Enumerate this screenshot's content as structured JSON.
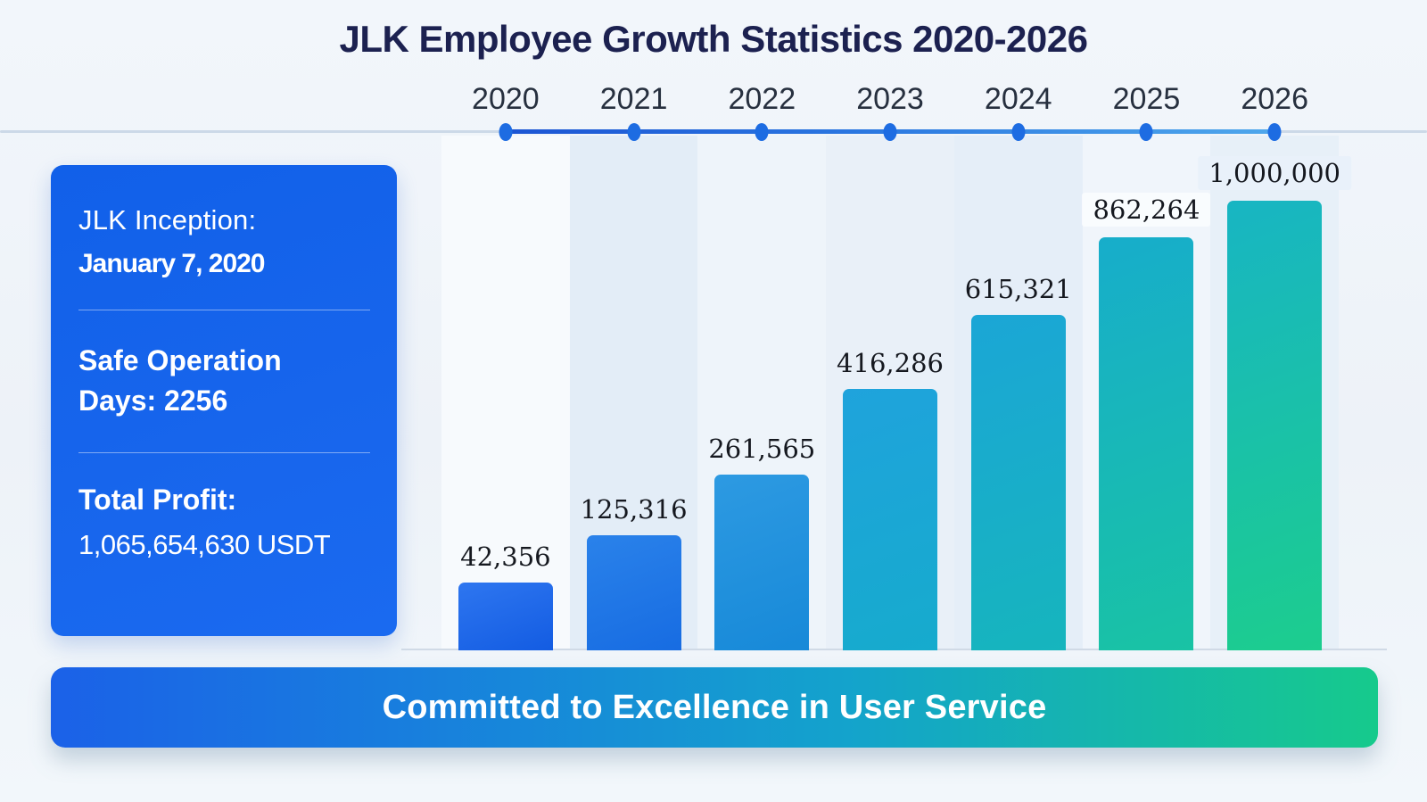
{
  "page": {
    "title": "JLK Employee Growth Statistics 2020-2026"
  },
  "chart_data": {
    "type": "bar",
    "title": "JLK Employee Growth Statistics 2020-2026",
    "categories": [
      "2020",
      "2021",
      "2022",
      "2023",
      "2024",
      "2025",
      "2026"
    ],
    "values": [
      42356,
      125316,
      261565,
      416286,
      615321,
      862264,
      1000000
    ],
    "value_labels": [
      "42,356",
      "125,316",
      "261,565",
      "416,286",
      "615,321",
      "862,264",
      "1,000,000"
    ],
    "xlabel": "",
    "ylabel": "",
    "grid": false,
    "legend": false,
    "axis_style": "horizontal timeline with dots above chart, no y-axis",
    "layout_hints": {
      "bar_height_pct": [
        13.2,
        22.4,
        34.1,
        50.8,
        65.2,
        80.2,
        87.3
      ],
      "labels_with_chip": [
        5,
        6
      ],
      "legend_position": "none"
    },
    "colors": {
      "timeline_dot": "#1d6ce2",
      "timeline_line": "#ccd9e8",
      "timeline_active": [
        "#1c55d4",
        "#4fa8ec"
      ],
      "bar_gradients": [
        [
          "#2e76f0",
          "#135ce2"
        ],
        [
          "#2a82ea",
          "#176ce2"
        ],
        [
          "#2d9ae2",
          "#1789d8"
        ],
        [
          "#1fa3dc",
          "#16abcd"
        ],
        [
          "#1ba6d6",
          "#16b5bd"
        ],
        [
          "#17adcb",
          "#19c3a4"
        ],
        [
          "#18b5c3",
          "#1ccd8e"
        ]
      ]
    }
  },
  "info_panel": {
    "inception_label": "JLK Inception:",
    "inception_value": "January 7, 2020",
    "operation_line1": "Safe Operation",
    "operation_line2": "Days: 2256",
    "profit_label": "Total Profit:",
    "profit_value": "1,065,654,630 USDT"
  },
  "banner": {
    "text": "Committed to Excellence in User Service"
  },
  "colors": {
    "title_text": "#1c2150",
    "panel_blue": "#1563ea",
    "banner_gradient": [
      "#1b61e8",
      "#14a3cc",
      "#16ca8c"
    ]
  }
}
